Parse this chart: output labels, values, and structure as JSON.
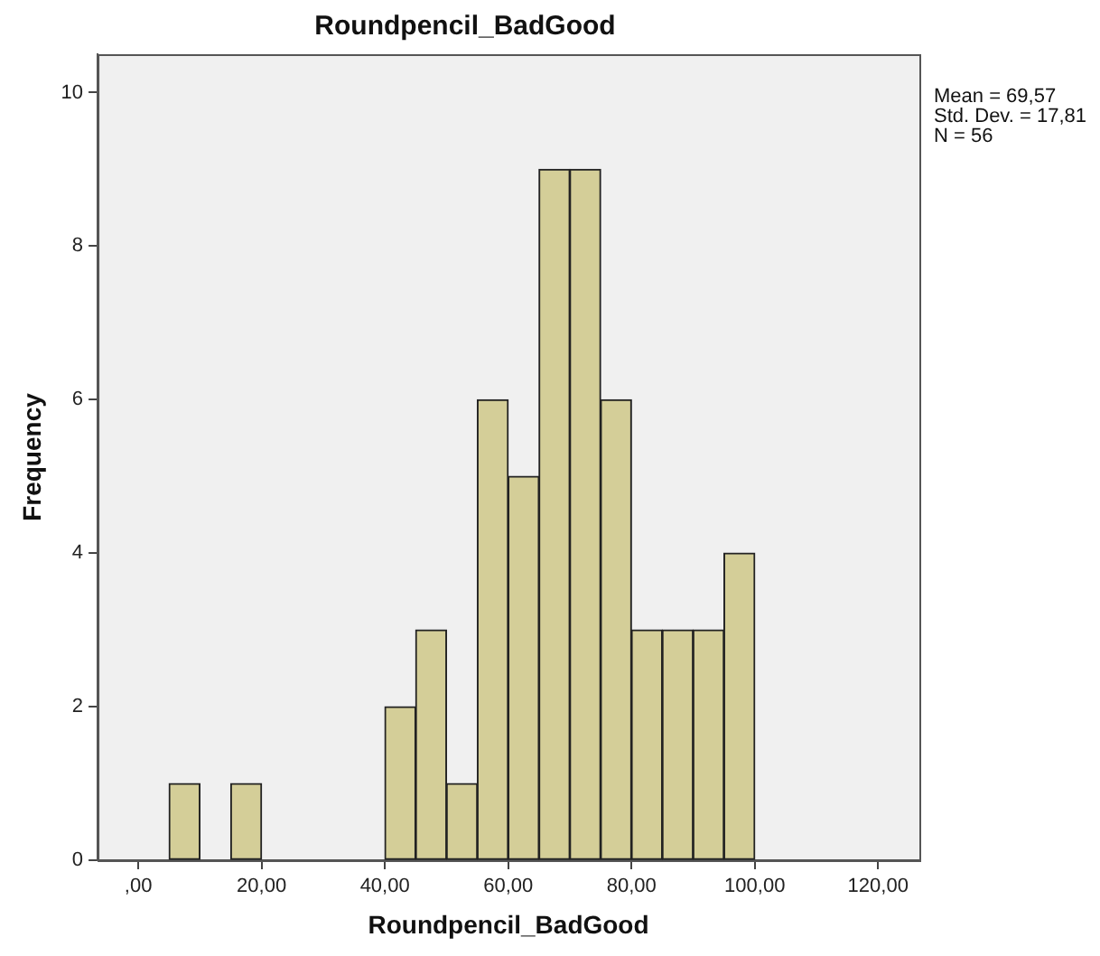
{
  "chart_data": {
    "type": "histogram",
    "title": "Roundpencil_BadGood",
    "xlabel": "Roundpencil_BadGood",
    "ylabel": "Frequency",
    "annotations": [
      "Mean = 69,57",
      "Std. Dev. = 17,81",
      "N = 56"
    ],
    "bins": [
      5,
      10,
      15,
      20,
      25,
      30,
      35,
      40,
      45,
      50,
      55,
      60,
      65,
      70,
      75,
      80,
      85,
      90,
      95,
      100
    ],
    "values": [
      1,
      0,
      1,
      0,
      0,
      0,
      0,
      2,
      3,
      1,
      6,
      5,
      9,
      9,
      6,
      3,
      3,
      3,
      4
    ],
    "color": "#d4ce98",
    "xlim": [
      -6.6,
      126.7
    ],
    "xticks": [
      {
        "value": 0,
        "label": ",00"
      },
      {
        "value": 20,
        "label": "20,00"
      },
      {
        "value": 40,
        "label": "40,00"
      },
      {
        "value": 60,
        "label": "60,00"
      },
      {
        "value": 80,
        "label": "80,00"
      },
      {
        "value": 100,
        "label": "100,00"
      },
      {
        "value": 120,
        "label": "120,00"
      }
    ],
    "ylim": [
      0,
      10.5
    ],
    "yticks": [
      0,
      2,
      4,
      6,
      8,
      10
    ],
    "grid": false,
    "legend": false
  }
}
